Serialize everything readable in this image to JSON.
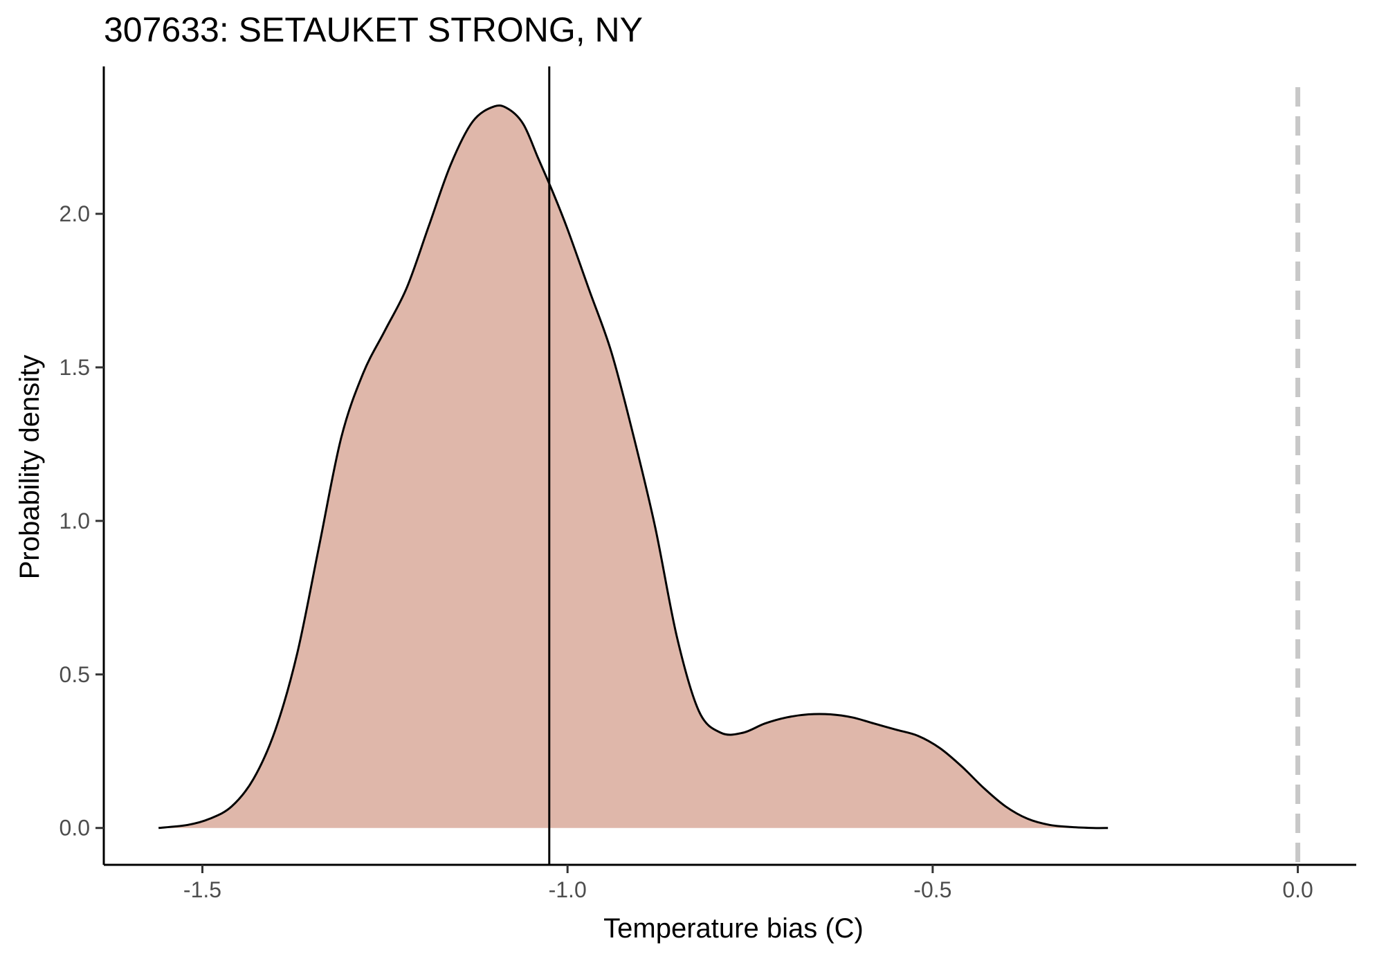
{
  "chart_data": {
    "type": "area",
    "title": "307633: SETAUKET STRONG, NY",
    "xlabel": "Temperature bias (C)",
    "ylabel": "Probability density",
    "xlim": [
      -1.635,
      0.08
    ],
    "ylim": [
      -0.12,
      2.48
    ],
    "x_ticks": [
      -1.5,
      -1.0,
      -0.5,
      0.0
    ],
    "x_tick_labels": [
      "-1.5",
      "-1.0",
      "-0.5",
      "0.0"
    ],
    "y_ticks": [
      0.0,
      0.5,
      1.0,
      1.5,
      2.0
    ],
    "y_tick_labels": [
      "0.0",
      "0.5",
      "1.0",
      "1.5",
      "2.0"
    ],
    "grid": false,
    "legend": "none",
    "series": [
      {
        "x": [
          -1.56,
          -1.52,
          -1.49,
          -1.46,
          -1.43,
          -1.4,
          -1.37,
          -1.34,
          -1.31,
          -1.28,
          -1.25,
          -1.22,
          -1.19,
          -1.16,
          -1.13,
          -1.1,
          -1.08,
          -1.06,
          -1.04,
          -1.02,
          -1.0,
          -0.97,
          -0.94,
          -0.91,
          -0.88,
          -0.85,
          -0.82,
          -0.79,
          -0.76,
          -0.73,
          -0.7,
          -0.67,
          -0.64,
          -0.61,
          -0.58,
          -0.55,
          -0.52,
          -0.49,
          -0.46,
          -0.43,
          -0.4,
          -0.37,
          -0.34,
          -0.31,
          -0.28,
          -0.26
        ],
        "y": [
          0.0,
          0.01,
          0.03,
          0.07,
          0.16,
          0.32,
          0.57,
          0.92,
          1.27,
          1.48,
          1.62,
          1.76,
          1.96,
          2.16,
          2.3,
          2.35,
          2.34,
          2.29,
          2.18,
          2.07,
          1.95,
          1.75,
          1.55,
          1.28,
          0.98,
          0.62,
          0.38,
          0.31,
          0.31,
          0.34,
          0.36,
          0.37,
          0.37,
          0.36,
          0.34,
          0.32,
          0.3,
          0.26,
          0.2,
          0.13,
          0.07,
          0.03,
          0.01,
          0.003,
          0.0,
          0.0
        ],
        "fill": "#dfb7aa",
        "line_color": "#000000"
      }
    ],
    "reference_lines": [
      {
        "x": -1.025,
        "style": "solid",
        "color": "#000000"
      },
      {
        "x": 0.0,
        "style": "dashed",
        "color": "#c8c8c8"
      }
    ]
  }
}
